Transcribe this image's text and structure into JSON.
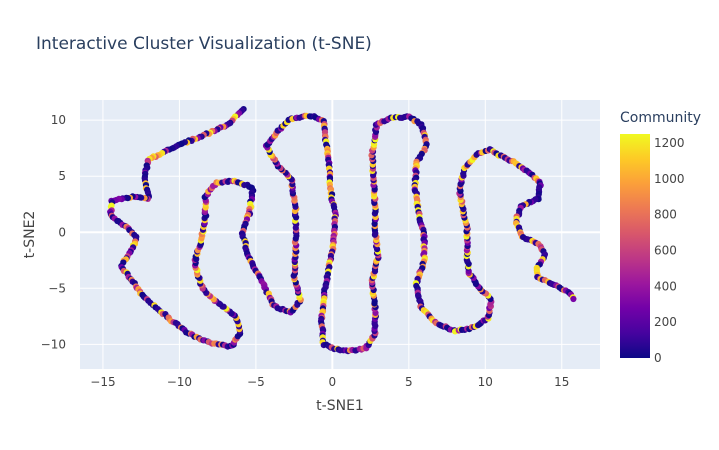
{
  "chart_data": {
    "type": "scatter",
    "title": "Interactive Cluster Visualization (t-SNE)",
    "xlabel": "t-SNE1",
    "ylabel": "t-SNE2",
    "xlim": [
      -16.5,
      17.5
    ],
    "ylim": [
      -12.2,
      11.8
    ],
    "x_ticks": [
      -15,
      -10,
      -5,
      0,
      5,
      10,
      15
    ],
    "y_ticks": [
      -10,
      -5,
      0,
      5,
      10
    ],
    "grid": true,
    "background": "#e5ecf6",
    "colorbar": {
      "title": "Community",
      "range": [
        0,
        1250
      ],
      "ticks": [
        0,
        200,
        400,
        600,
        800,
        1000,
        1200
      ],
      "colorscale": [
        "#0d0887",
        "#46039f",
        "#7201a8",
        "#9c179e",
        "#bd3786",
        "#d8576b",
        "#ed7953",
        "#fb9f3a",
        "#fdca26",
        "#f0f921"
      ]
    },
    "path": [
      [
        -5.8,
        11.0
      ],
      [
        -6.8,
        9.6
      ],
      [
        -8.5,
        8.6
      ],
      [
        -10.5,
        7.5
      ],
      [
        -12.0,
        6.5
      ],
      [
        -12.3,
        5.0
      ],
      [
        -12.0,
        3.0
      ],
      [
        -13.0,
        3.2
      ],
      [
        -14.4,
        2.8
      ],
      [
        -14.5,
        1.5
      ],
      [
        -13.3,
        0.3
      ],
      [
        -12.8,
        -0.5
      ],
      [
        -13.2,
        -1.8
      ],
      [
        -13.8,
        -3.0
      ],
      [
        -13.3,
        -4.0
      ],
      [
        -12.3,
        -5.8
      ],
      [
        -10.6,
        -7.8
      ],
      [
        -9.3,
        -9.1
      ],
      [
        -7.9,
        -9.9
      ],
      [
        -6.6,
        -10.2
      ],
      [
        -6.0,
        -9.0
      ],
      [
        -6.3,
        -7.5
      ],
      [
        -7.6,
        -6.2
      ],
      [
        -8.6,
        -4.8
      ],
      [
        -9.0,
        -2.6
      ],
      [
        -8.6,
        -0.8
      ],
      [
        -8.3,
        1.2
      ],
      [
        -8.3,
        3.2
      ],
      [
        -7.6,
        4.4
      ],
      [
        -6.4,
        4.6
      ],
      [
        -5.2,
        4.0
      ],
      [
        -5.4,
        1.8
      ],
      [
        -5.9,
        0.0
      ],
      [
        -5.5,
        -2.2
      ],
      [
        -4.6,
        -4.4
      ],
      [
        -3.8,
        -6.6
      ],
      [
        -2.7,
        -7.2
      ],
      [
        -2.1,
        -6.1
      ],
      [
        -2.5,
        -4.0
      ],
      [
        -2.4,
        -2.0
      ],
      [
        -2.4,
        0.2
      ],
      [
        -2.4,
        2.2
      ],
      [
        -2.7,
        4.8
      ],
      [
        -3.6,
        6.0
      ],
      [
        -4.3,
        7.7
      ],
      [
        -3.6,
        9.0
      ],
      [
        -2.7,
        10.1
      ],
      [
        -1.5,
        10.4
      ],
      [
        -0.6,
        10.0
      ],
      [
        -0.4,
        8.0
      ],
      [
        -0.2,
        5.7
      ],
      [
        -0.1,
        3.6
      ],
      [
        0.2,
        1.6
      ],
      [
        0.1,
        -0.8
      ],
      [
        -0.2,
        -3.0
      ],
      [
        -0.5,
        -5.2
      ],
      [
        -0.7,
        -7.8
      ],
      [
        -0.6,
        -10.0
      ],
      [
        0.6,
        -10.6
      ],
      [
        2.2,
        -10.4
      ],
      [
        2.8,
        -9.0
      ],
      [
        2.8,
        -6.8
      ],
      [
        2.6,
        -4.4
      ],
      [
        3.0,
        -2.2
      ],
      [
        2.8,
        0.0
      ],
      [
        2.8,
        2.4
      ],
      [
        2.7,
        4.8
      ],
      [
        2.6,
        7.0
      ],
      [
        2.9,
        9.6
      ],
      [
        3.8,
        10.2
      ],
      [
        5.0,
        10.3
      ],
      [
        5.8,
        9.6
      ],
      [
        6.2,
        7.8
      ],
      [
        5.5,
        6.2
      ],
      [
        5.4,
        4.2
      ],
      [
        5.6,
        2.0
      ],
      [
        6.0,
        -0.2
      ],
      [
        6.0,
        -2.6
      ],
      [
        5.5,
        -4.6
      ],
      [
        5.8,
        -6.6
      ],
      [
        6.8,
        -8.1
      ],
      [
        8.0,
        -8.8
      ],
      [
        9.0,
        -8.6
      ],
      [
        10.2,
        -7.7
      ],
      [
        10.4,
        -6.0
      ],
      [
        9.5,
        -4.8
      ],
      [
        8.9,
        -3.5
      ],
      [
        8.8,
        -1.6
      ],
      [
        8.8,
        0.4
      ],
      [
        8.5,
        2.2
      ],
      [
        8.3,
        4.0
      ],
      [
        8.7,
        5.8
      ],
      [
        9.5,
        7.0
      ],
      [
        10.3,
        7.4
      ],
      [
        11.0,
        6.8
      ],
      [
        12.0,
        6.2
      ],
      [
        12.8,
        5.4
      ],
      [
        13.6,
        4.4
      ],
      [
        13.5,
        3.0
      ],
      [
        12.4,
        2.4
      ],
      [
        12.0,
        1.0
      ],
      [
        12.4,
        -0.4
      ],
      [
        13.6,
        -1.2
      ],
      [
        13.9,
        -2.0
      ],
      [
        13.4,
        -3.2
      ],
      [
        13.4,
        -4.0
      ],
      [
        14.2,
        -4.5
      ],
      [
        15.5,
        -5.4
      ],
      [
        15.8,
        -6.0
      ]
    ]
  }
}
